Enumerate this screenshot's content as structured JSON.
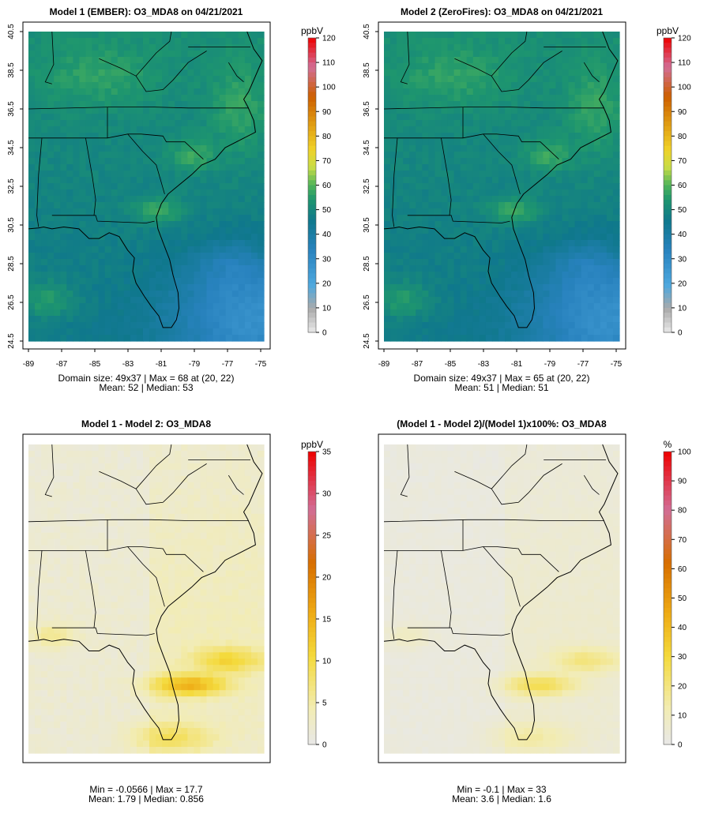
{
  "panels": [
    {
      "title": "Model 1 (EMBER): O3_MDA8 on 04/21/2021",
      "field": "model",
      "unit": "ppbV",
      "scale_max": 120,
      "colorbar_ticks": [
        "120",
        "110",
        "100",
        "90",
        "80",
        "70",
        "60",
        "50",
        "40",
        "30",
        "20",
        "10",
        "0"
      ],
      "stats_line1": "Domain size: 49x37 | Max = 68 at (20, 22)",
      "stats_line2": "Mean: 52 |  Median: 53",
      "show_axes": true
    },
    {
      "title": "Model 2 (ZeroFires): O3_MDA8 on 04/21/2021",
      "field": "model",
      "unit": "ppbV",
      "scale_max": 120,
      "colorbar_ticks": [
        "120",
        "110",
        "100",
        "90",
        "80",
        "70",
        "60",
        "50",
        "40",
        "30",
        "20",
        "10",
        "0"
      ],
      "stats_line1": "Domain size: 49x37 | Max = 65 at (20, 22)",
      "stats_line2": "Mean: 51 |  Median: 51",
      "show_axes": true
    },
    {
      "title": "Model 1 - Model 2: O3_MDA8",
      "field": "diff",
      "unit": "ppbV",
      "scale_max": 35,
      "colorbar_ticks": [
        "35",
        "30",
        "25",
        "20",
        "15",
        "10",
        "5",
        "0"
      ],
      "stats_line1": "Min = -0.0566 | Max = 17.7",
      "stats_line2": "Mean: 1.79 |  Median: 0.856",
      "show_axes": false
    },
    {
      "title": "(Model 1 - Model 2)/(Model 1)x100%: O3_MDA8",
      "field": "pct",
      "unit": "%",
      "scale_max": 100,
      "colorbar_ticks": [
        "100",
        "90",
        "80",
        "70",
        "60",
        "50",
        "40",
        "30",
        "20",
        "10",
        "0"
      ],
      "stats_line1": "Min = -0.1 | Max = 33",
      "stats_line2": "Mean: 3.6 |  Median: 1.6",
      "show_axes": false
    }
  ],
  "axes": {
    "x_ticks": [
      "-89",
      "-87",
      "-85",
      "-83",
      "-81",
      "-79",
      "-77",
      "-75"
    ],
    "y_ticks": [
      "40.5",
      "38.5",
      "36.5",
      "34.5",
      "32.5",
      "30.5",
      "28.5",
      "26.5",
      "24.5"
    ]
  },
  "chart_data": [
    {
      "type": "heatmap",
      "title": "Model 1 (EMBER): O3_MDA8 on 04/21/2021",
      "unit": "ppbV",
      "grid": [
        49,
        37
      ],
      "max": 68,
      "max_at": [
        20,
        22
      ],
      "mean": 52,
      "median": 53,
      "scale": [
        0,
        120
      ],
      "lon_range": [
        -89,
        -75
      ],
      "lat_range": [
        24.5,
        40.5
      ]
    },
    {
      "type": "heatmap",
      "title": "Model 2 (ZeroFires): O3_MDA8 on 04/21/2021",
      "unit": "ppbV",
      "grid": [
        49,
        37
      ],
      "max": 65,
      "max_at": [
        20,
        22
      ],
      "mean": 51,
      "median": 51,
      "scale": [
        0,
        120
      ],
      "lon_range": [
        -89,
        -75
      ],
      "lat_range": [
        24.5,
        40.5
      ]
    },
    {
      "type": "heatmap",
      "title": "Model 1 - Model 2: O3_MDA8",
      "unit": "ppbV",
      "min": -0.0566,
      "max": 17.7,
      "mean": 1.79,
      "median": 0.856,
      "scale": [
        0,
        35
      ]
    },
    {
      "type": "heatmap",
      "title": "(Model 1 - Model 2)/(Model 1)x100%: O3_MDA8",
      "unit": "%",
      "min": -0.1,
      "max": 33,
      "mean": 3.6,
      "median": 1.6,
      "scale": [
        0,
        100
      ]
    }
  ]
}
